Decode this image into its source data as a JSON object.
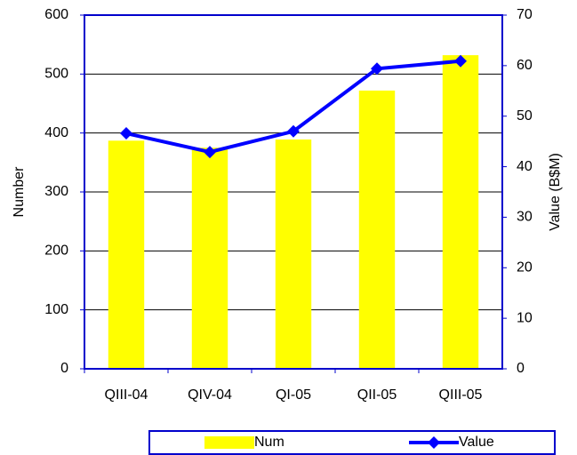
{
  "chart_data": {
    "type": "bar-line",
    "categories": [
      "QIII-04",
      "QIV-04",
      "QI-05",
      "QII-05",
      "QIII-05"
    ],
    "series": [
      {
        "name": "Num",
        "type": "bar",
        "color": "#ffff00",
        "values": [
          387,
          375,
          389,
          472,
          532
        ]
      },
      {
        "name": "Value",
        "type": "line",
        "color": "#0000ff",
        "axis": "y2",
        "values": [
          46.6,
          42.9,
          47.0,
          59.4,
          60.9
        ]
      }
    ],
    "ylabel": "Number",
    "y2label": "Value (B$M)",
    "ylim": [
      0,
      600
    ],
    "yticks": [
      0,
      100,
      200,
      300,
      400,
      500,
      600
    ],
    "y2lim": [
      0,
      70
    ],
    "y2ticks": [
      0,
      10,
      20,
      30,
      40,
      50,
      60,
      70
    ],
    "grid": true,
    "legend": "bottom"
  }
}
